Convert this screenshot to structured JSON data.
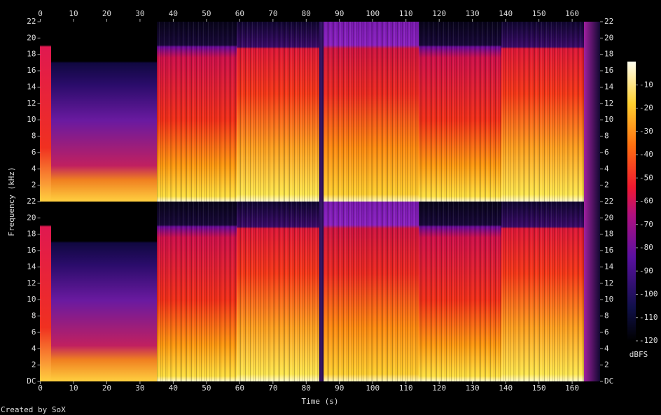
{
  "chart_data": {
    "type": "spectrogram",
    "xlabel": "Time (s)",
    "ylabel": "Frequency (kHz)",
    "xlim": [
      0,
      168.4
    ],
    "xticks": [
      0,
      10,
      20,
      30,
      40,
      50,
      60,
      70,
      80,
      90,
      100,
      110,
      120,
      130,
      140,
      150,
      160
    ],
    "ylim": [
      0,
      22
    ],
    "channels": [
      {
        "yticks": [
          2,
          4,
          6,
          8,
          10,
          12,
          14,
          16,
          18,
          20,
          22
        ]
      },
      {
        "yticks": [
          {
            "value": 0,
            "label": "DC"
          },
          2,
          4,
          6,
          8,
          10,
          12,
          14,
          16,
          18,
          20,
          22
        ]
      }
    ],
    "colorbar": {
      "label": "dBFS",
      "lim": [
        -120,
        0
      ],
      "ticks": [
        -10,
        -20,
        -30,
        -40,
        -50,
        -60,
        -70,
        -80,
        -90,
        -100,
        -110,
        -120
      ]
    }
  },
  "footer": "Created by SoX"
}
